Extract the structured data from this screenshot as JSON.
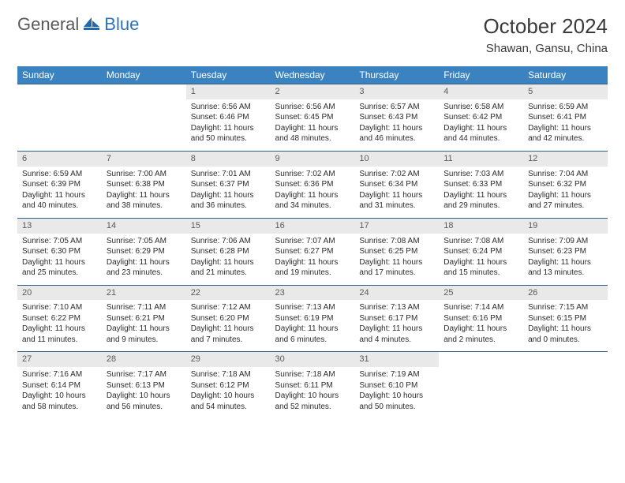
{
  "brand": {
    "word1": "General",
    "word2": "Blue"
  },
  "title": "October 2024",
  "location": "Shawan, Gansu, China",
  "colors": {
    "header_bg": "#3b83c0",
    "header_text": "#ffffff",
    "daynum_bg": "#e9e9e9",
    "row_border": "#2f5e8a",
    "logo_gray": "#595959",
    "logo_blue": "#2f73b7"
  },
  "typography": {
    "body_fontsize": 10,
    "header_fontsize": 12,
    "title_fontsize": 26
  },
  "weekdays": [
    "Sunday",
    "Monday",
    "Tuesday",
    "Wednesday",
    "Thursday",
    "Friday",
    "Saturday"
  ],
  "layout": {
    "blank_leading": 2,
    "rows": 5,
    "cols": 7
  },
  "days": [
    {
      "n": 1,
      "sunrise": "6:56 AM",
      "sunset": "6:46 PM",
      "daylight": "11 hours and 50 minutes."
    },
    {
      "n": 2,
      "sunrise": "6:56 AM",
      "sunset": "6:45 PM",
      "daylight": "11 hours and 48 minutes."
    },
    {
      "n": 3,
      "sunrise": "6:57 AM",
      "sunset": "6:43 PM",
      "daylight": "11 hours and 46 minutes."
    },
    {
      "n": 4,
      "sunrise": "6:58 AM",
      "sunset": "6:42 PM",
      "daylight": "11 hours and 44 minutes."
    },
    {
      "n": 5,
      "sunrise": "6:59 AM",
      "sunset": "6:41 PM",
      "daylight": "11 hours and 42 minutes."
    },
    {
      "n": 6,
      "sunrise": "6:59 AM",
      "sunset": "6:39 PM",
      "daylight": "11 hours and 40 minutes."
    },
    {
      "n": 7,
      "sunrise": "7:00 AM",
      "sunset": "6:38 PM",
      "daylight": "11 hours and 38 minutes."
    },
    {
      "n": 8,
      "sunrise": "7:01 AM",
      "sunset": "6:37 PM",
      "daylight": "11 hours and 36 minutes."
    },
    {
      "n": 9,
      "sunrise": "7:02 AM",
      "sunset": "6:36 PM",
      "daylight": "11 hours and 34 minutes."
    },
    {
      "n": 10,
      "sunrise": "7:02 AM",
      "sunset": "6:34 PM",
      "daylight": "11 hours and 31 minutes."
    },
    {
      "n": 11,
      "sunrise": "7:03 AM",
      "sunset": "6:33 PM",
      "daylight": "11 hours and 29 minutes."
    },
    {
      "n": 12,
      "sunrise": "7:04 AM",
      "sunset": "6:32 PM",
      "daylight": "11 hours and 27 minutes."
    },
    {
      "n": 13,
      "sunrise": "7:05 AM",
      "sunset": "6:30 PM",
      "daylight": "11 hours and 25 minutes."
    },
    {
      "n": 14,
      "sunrise": "7:05 AM",
      "sunset": "6:29 PM",
      "daylight": "11 hours and 23 minutes."
    },
    {
      "n": 15,
      "sunrise": "7:06 AM",
      "sunset": "6:28 PM",
      "daylight": "11 hours and 21 minutes."
    },
    {
      "n": 16,
      "sunrise": "7:07 AM",
      "sunset": "6:27 PM",
      "daylight": "11 hours and 19 minutes."
    },
    {
      "n": 17,
      "sunrise": "7:08 AM",
      "sunset": "6:25 PM",
      "daylight": "11 hours and 17 minutes."
    },
    {
      "n": 18,
      "sunrise": "7:08 AM",
      "sunset": "6:24 PM",
      "daylight": "11 hours and 15 minutes."
    },
    {
      "n": 19,
      "sunrise": "7:09 AM",
      "sunset": "6:23 PM",
      "daylight": "11 hours and 13 minutes."
    },
    {
      "n": 20,
      "sunrise": "7:10 AM",
      "sunset": "6:22 PM",
      "daylight": "11 hours and 11 minutes."
    },
    {
      "n": 21,
      "sunrise": "7:11 AM",
      "sunset": "6:21 PM",
      "daylight": "11 hours and 9 minutes."
    },
    {
      "n": 22,
      "sunrise": "7:12 AM",
      "sunset": "6:20 PM",
      "daylight": "11 hours and 7 minutes."
    },
    {
      "n": 23,
      "sunrise": "7:13 AM",
      "sunset": "6:19 PM",
      "daylight": "11 hours and 6 minutes."
    },
    {
      "n": 24,
      "sunrise": "7:13 AM",
      "sunset": "6:17 PM",
      "daylight": "11 hours and 4 minutes."
    },
    {
      "n": 25,
      "sunrise": "7:14 AM",
      "sunset": "6:16 PM",
      "daylight": "11 hours and 2 minutes."
    },
    {
      "n": 26,
      "sunrise": "7:15 AM",
      "sunset": "6:15 PM",
      "daylight": "11 hours and 0 minutes."
    },
    {
      "n": 27,
      "sunrise": "7:16 AM",
      "sunset": "6:14 PM",
      "daylight": "10 hours and 58 minutes."
    },
    {
      "n": 28,
      "sunrise": "7:17 AM",
      "sunset": "6:13 PM",
      "daylight": "10 hours and 56 minutes."
    },
    {
      "n": 29,
      "sunrise": "7:18 AM",
      "sunset": "6:12 PM",
      "daylight": "10 hours and 54 minutes."
    },
    {
      "n": 30,
      "sunrise": "7:18 AM",
      "sunset": "6:11 PM",
      "daylight": "10 hours and 52 minutes."
    },
    {
      "n": 31,
      "sunrise": "7:19 AM",
      "sunset": "6:10 PM",
      "daylight": "10 hours and 50 minutes."
    }
  ],
  "labels": {
    "sunrise": "Sunrise:",
    "sunset": "Sunset:",
    "daylight": "Daylight:"
  }
}
